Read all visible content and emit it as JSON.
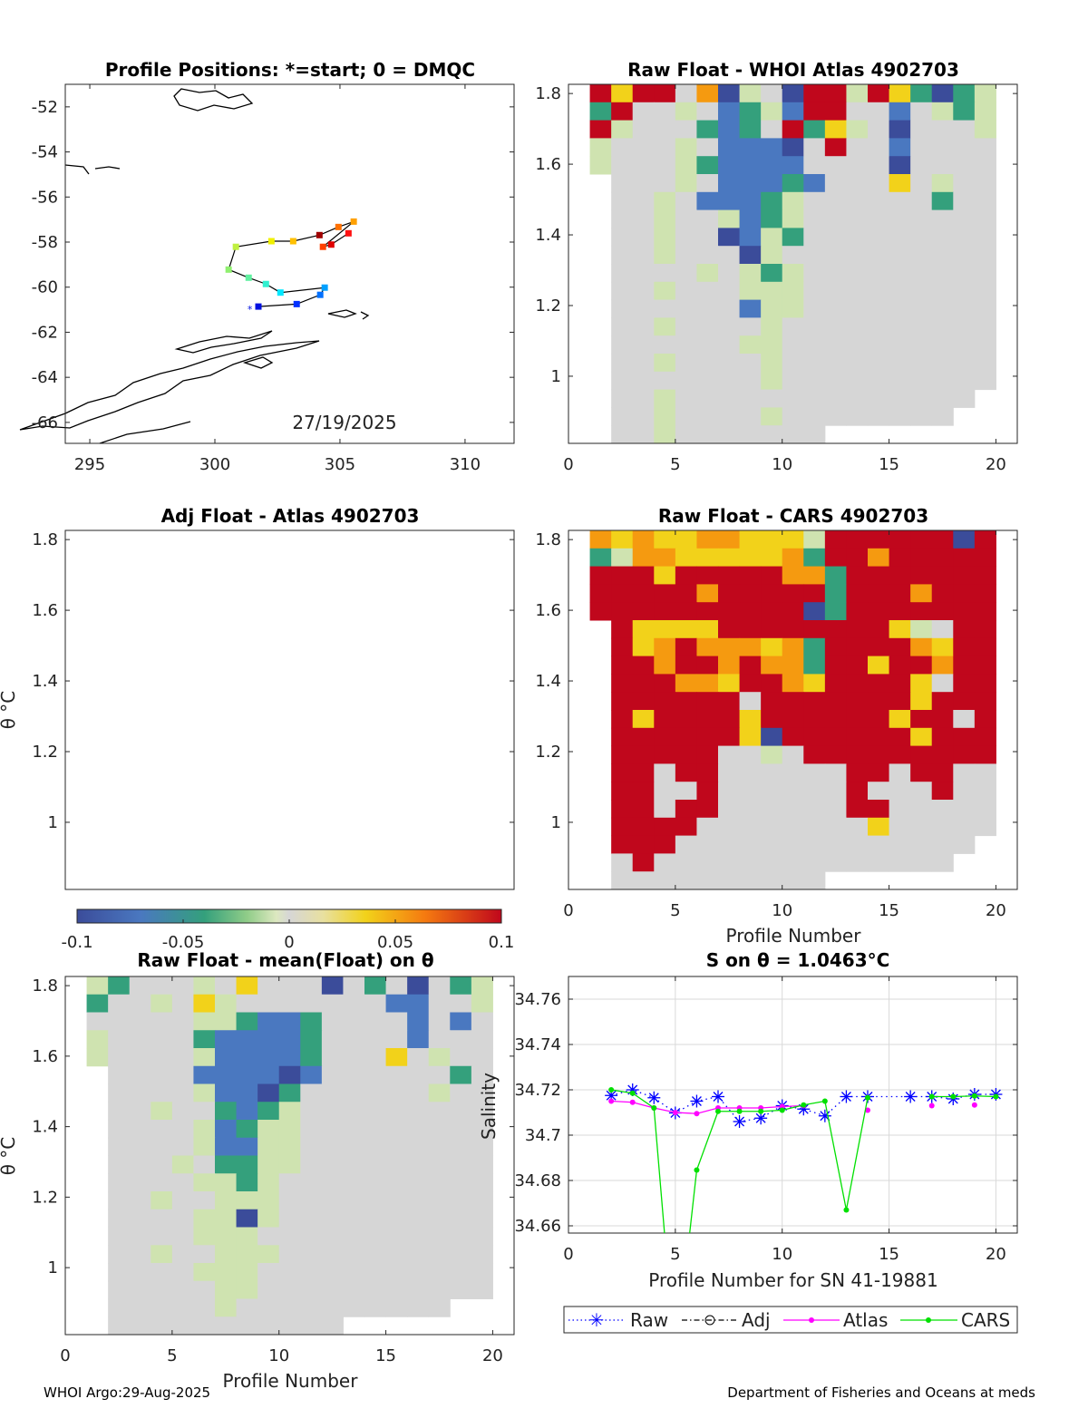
{
  "footer": {
    "left": "WHOI Argo:29-Aug-2025",
    "right": "Department of Fisheries and Oceans at meds"
  },
  "colors": {
    "raw": "#0000ff",
    "adj": "#000000",
    "atlas": "#ff00ff",
    "cars": "#00e000",
    "axis": "#262626",
    "grid": "#d9d9d9"
  },
  "chart_data": [
    {
      "id": "map",
      "type": "scatter",
      "title": "Profile Positions: *=start; 0 = DMQC",
      "annotation": "27/19/2025",
      "xlim": [
        294.02,
        311.96
      ],
      "ylim": [
        -66.93,
        -51.0
      ],
      "xticks": [
        295,
        300,
        305,
        310
      ],
      "xtick_labels": [
        "295",
        "300",
        "305",
        "310"
      ],
      "yticks": [
        -52,
        -54,
        -56,
        -58,
        -60,
        -62,
        -64,
        -66
      ],
      "ytick_labels": [
        "-52",
        "-54",
        "-56",
        "-58",
        "-60",
        "-62",
        "-64",
        "-66"
      ],
      "start": {
        "lon": 301.4,
        "lat": -60.94
      },
      "positions": [
        {
          "lon": 301.74,
          "lat": -60.86,
          "color": "#0010e0"
        },
        {
          "lon": 303.27,
          "lat": -60.75,
          "color": "#0030ff"
        },
        {
          "lon": 304.21,
          "lat": -60.34,
          "color": "#0070ff"
        },
        {
          "lon": 304.39,
          "lat": -60.02,
          "color": "#00a0ff"
        },
        {
          "lon": 302.62,
          "lat": -60.24,
          "color": "#00e8ff"
        },
        {
          "lon": 302.04,
          "lat": -59.86,
          "color": "#30f0d0"
        },
        {
          "lon": 301.35,
          "lat": -59.58,
          "color": "#60f0a0"
        },
        {
          "lon": 300.55,
          "lat": -59.22,
          "color": "#90f070"
        },
        {
          "lon": 300.84,
          "lat": -58.21,
          "color": "#c0f040"
        },
        {
          "lon": 302.26,
          "lat": -57.96,
          "color": "#f0f000"
        },
        {
          "lon": 303.13,
          "lat": -57.96,
          "color": "#ffc000"
        },
        {
          "lon": 304.18,
          "lat": -57.69,
          "color": "#a00000"
        },
        {
          "lon": 304.94,
          "lat": -57.33,
          "color": "#ff7000"
        },
        {
          "lon": 305.55,
          "lat": -57.09,
          "color": "#ffa000"
        },
        {
          "lon": 304.32,
          "lat": -58.21,
          "color": "#ff4000"
        },
        {
          "lon": 304.65,
          "lat": -58.11,
          "color": "#e00000"
        },
        {
          "lon": 305.34,
          "lat": -57.61,
          "color": "#ff1010"
        }
      ]
    },
    {
      "id": "whoi",
      "type": "heatmap",
      "title": "Raw Float - WHOI Atlas  4902703",
      "xlim": [
        0,
        21
      ],
      "ylim": [
        0.81,
        1.826
      ],
      "xticks": [
        0,
        5,
        10,
        15,
        20
      ],
      "xtick_labels": [
        "0",
        "5",
        "10",
        "15",
        "20"
      ],
      "yticks": [
        1.8,
        1.6,
        1.4,
        1.2,
        1.0
      ],
      "ytick_labels": [
        "1.8",
        "1.6",
        "1.4",
        "1.2",
        "1"
      ],
      "x_start": 1,
      "rows": [
        "ryrrgoBlgBrrlryGBGl",
        "GrgglgbGlbrrggbglGl",
        "rlgggGbGgrGylgBgggl",
        "lggglgbbbBgrggbgggg",
        "lggglGbbbbggggBgggg",
        ".ggglgbbbGbgggyglgg",
        ".gglgbbbGlggggggGgg",
        ".gglgglbGlggggggggg",
        ".gglggBblGggggggggg",
        ".gglgggBlgggggggggg",
        ".gggglglGlggggggggg",
        ".gglggglllggggggggg",
        ".ggggggbllggggggggg",
        ".gglgggglgggggggggg",
        ".ggggggllgggggggggg",
        ".gglgggglgggggggggg",
        ".ggggggglgggggggggg",
        ".gglgggggggggggggg.",
        ".gglgggglgggggggg..",
        ".gglggggggg........"
      ]
    },
    {
      "id": "adj",
      "type": "heatmap",
      "title": "Adj Float - Atlas  4902703",
      "ylabel": "θ °C",
      "xlim": [
        0,
        21
      ],
      "ylim": [
        0.81,
        1.826
      ],
      "yticks": [
        1.8,
        1.6,
        1.4,
        1.2,
        1.0
      ],
      "ytick_labels": [
        "1.8",
        "1.6",
        "1.4",
        "1.2",
        "1"
      ],
      "rows": []
    },
    {
      "id": "cars",
      "type": "heatmap",
      "title": "Raw Float - CARS  4902703",
      "xlabel": "Profile Number",
      "xlim": [
        0,
        21
      ],
      "ylim": [
        0.81,
        1.826
      ],
      "xticks": [
        0,
        5,
        10,
        15,
        20
      ],
      "xtick_labels": [
        "0",
        "5",
        "10",
        "15",
        "20"
      ],
      "yticks": [
        1.8,
        1.6,
        1.4,
        1.2,
        1.0
      ],
      "ytick_labels": [
        "1.8",
        "1.6",
        "1.4",
        "1.2",
        "1"
      ],
      "x_start": 1,
      "rows": [
        "oyoyyooyyylrrrrrrBr",
        "GlooyyyyyoGrrorrrrr",
        "rrryrrrrrooGrrrrrrr",
        "rrrrrorrrrrGrrrorrr",
        "rrrrrrrrrrBGrrrrrrr",
        ".ryyyyrrrrrrrrylgrr",
        ".ryoroooyoGrrrroyrr",
        ".rrorrorooGrryrrorr",
        ".rrrooyrroyrrrrygrr",
        ".rrrrrrgrrrrrrryrrr",
        ".ryrrrryrrrrrryrrgr",
        ".rrrrrryBrrrrrryrrr",
        ".rrrrrgglgrrrrrrrrr",
        ".rrgrrggggggrrgrrgg",
        ".rrggrggggggrgggrgg",
        ".rrgrrggggggrrggggg",
        ".rrrrggggggggyggggg",
        ".rrrgggggggggggggg.",
        ".grgggggggggggggg..",
        ".gggggggggg........"
      ]
    },
    {
      "id": "colorbar",
      "type": "heatmap",
      "range": [
        -0.1,
        0.1
      ],
      "tick_labels": [
        "-0.1",
        "-0.05",
        "0",
        "0.05",
        "0.1"
      ],
      "ticks": [
        -0.1,
        -0.05,
        0,
        0.05,
        0.1
      ],
      "palette": {
        "B": "#3b4c9a",
        "b": "#4a78c0",
        "G": "#34a07c",
        "l": "#cfe3b0",
        "g": "#d6d6d6",
        "y": "#f2d21a",
        "o": "#f59a10",
        "r": "#c0071c"
      },
      "palette_values": {
        "B": -0.1,
        "b": -0.08,
        "G": -0.05,
        "l": -0.02,
        "g": 0,
        "y": 0.04,
        "o": 0.07,
        "r": 0.1
      }
    },
    {
      "id": "mean",
      "type": "heatmap",
      "title": "Raw Float - mean(Float) on θ",
      "xlabel": "Profile Number",
      "ylabel": "θ °C",
      "xlim": [
        0,
        21
      ],
      "ylim": [
        0.81,
        1.826
      ],
      "xticks": [
        0,
        5,
        10,
        15,
        20
      ],
      "xtick_labels": [
        "0",
        "5",
        "10",
        "15",
        "20"
      ],
      "yticks": [
        1.8,
        1.6,
        1.4,
        1.2,
        1.0
      ],
      "ytick_labels": [
        "1.8",
        "1.6",
        "1.4",
        "1.2",
        "1"
      ],
      "x_start": 1,
      "rows": [
        "lGggglgygggBgGgBgGl",
        "Ggglgylgggggggbbggl",
        "gggggllGbbGggggbgbg",
        "lggggGbbbbGggggbggg",
        "lgggglbbbbGgggyglgg",
        ".ggggbbbbBbggggggGg",
        ".gggglbbBGgggggglgg",
        ".gglggGbGlggggggggg",
        ".gggglbGllggggggggg",
        ".gggglbbllggggggggg",
        ".ggglgGGllggggggggg",
        ".ggggllGlgggggggggg",
        ".gglgglllgggggggggg",
        ".ggggllBlgggggggggg",
        ".gggglllggggggggggg",
        ".gglgglllgggggggggg",
        ".gggglllggggggggggg",
        ".gggggllggggggggggg",
        ".ggggglgggggggggg..",
        ".ggggggggggg......."
      ]
    },
    {
      "id": "salinity",
      "type": "line",
      "title": "S on θ = 1.0463°C",
      "xlabel": "Profile Number for SN 41-19881",
      "ylabel": "Salinity",
      "xlim": [
        0,
        21
      ],
      "ylim": [
        34.6568,
        34.77
      ],
      "xticks": [
        0,
        5,
        10,
        15,
        20
      ],
      "xtick_labels": [
        "0",
        "5",
        "10",
        "15",
        "20"
      ],
      "yticks": [
        34.66,
        34.68,
        34.7,
        34.72,
        34.74,
        34.76
      ],
      "ytick_labels": [
        "34.66",
        "34.68",
        "34.7",
        "34.72",
        "34.74",
        "34.76"
      ],
      "grid": true,
      "legend": [
        "Raw",
        "Adj",
        "Atlas",
        "CARS"
      ],
      "legend_position": "bottom-outside",
      "x": [
        2,
        3,
        4,
        5,
        6,
        7,
        8,
        9,
        10,
        11,
        12,
        13,
        14,
        15,
        16,
        17,
        18,
        19,
        20
      ],
      "series": [
        {
          "name": "Raw",
          "values": [
            34.7175,
            34.72,
            34.7165,
            34.7098,
            34.715,
            34.717,
            34.706,
            34.7075,
            34.713,
            34.7115,
            34.7085,
            34.717,
            34.717,
            null,
            34.717,
            34.717,
            34.716,
            34.718,
            34.718
          ]
        },
        {
          "name": "Adj",
          "values": [
            null,
            null,
            null,
            null,
            null,
            null,
            null,
            null,
            null,
            null,
            null,
            null,
            null,
            null,
            null,
            null,
            null,
            null,
            null
          ]
        },
        {
          "name": "Atlas",
          "values": [
            34.715,
            34.7145,
            34.712,
            34.71,
            34.7095,
            34.712,
            34.712,
            34.712,
            34.7126,
            34.713,
            null,
            null,
            34.711,
            null,
            null,
            34.713,
            null,
            34.7133,
            null
          ]
        },
        {
          "name": "CARS",
          "values": [
            34.72,
            34.7185,
            34.712,
            34.6,
            34.6846,
            34.7105,
            34.7105,
            34.7105,
            34.711,
            34.7133,
            34.715,
            34.667,
            34.7165,
            null,
            null,
            34.717,
            34.717,
            34.7173,
            34.717
          ]
        }
      ]
    }
  ]
}
